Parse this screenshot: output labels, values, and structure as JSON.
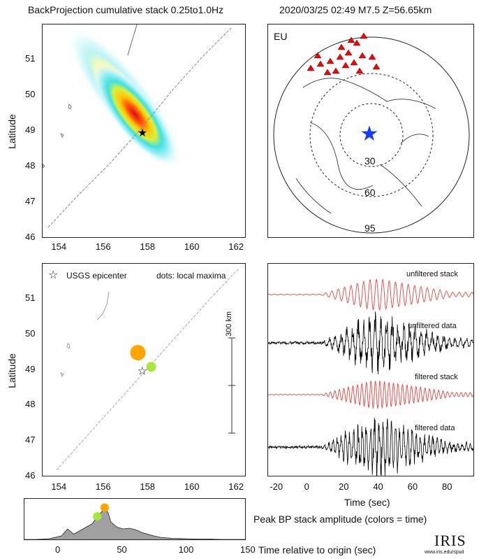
{
  "header": {
    "left_title": "BackProjection cumulative stack 0.25to1.0Hz",
    "right_title": "2020/03/25 02:49   M7.5   Z=56.65km"
  },
  "map_top": {
    "ylabel": "Latitude",
    "xticks": [
      "154",
      "156",
      "158",
      "160",
      "162"
    ],
    "yticks": [
      "51",
      "50",
      "49",
      "48",
      "47",
      "46"
    ],
    "epicenter": {
      "lon": 157.7,
      "lat": 49.0
    },
    "xlim": [
      153.2,
      162.4
    ],
    "ylim": [
      46.0,
      52.0
    ]
  },
  "globe": {
    "network_label": "EU",
    "distance_labels": [
      "30",
      "60",
      "95"
    ]
  },
  "map_bottom": {
    "ylabel": "Latitude",
    "legend_epicenter": "USGS epicenter",
    "legend_dots": "dots: local maxima",
    "scalebar_label": "300 km",
    "xticks": [
      "154",
      "156",
      "158",
      "160",
      "162"
    ],
    "yticks": [
      "51",
      "50",
      "49",
      "48",
      "47",
      "46"
    ],
    "xlim": [
      153.2,
      162.4
    ],
    "ylim": [
      46.0,
      52.0
    ],
    "epicenter": {
      "lon": 157.7,
      "lat": 49.0
    },
    "maxima": [
      {
        "lon": 157.5,
        "lat": 49.5,
        "color": "#ffa500",
        "size": "large"
      },
      {
        "lon": 158.1,
        "lat": 49.1,
        "color": "#a8e63c",
        "size": "small"
      }
    ]
  },
  "traces": {
    "labels": [
      "unfiltered stack",
      "unfiltered data",
      "filtered stack",
      "filtered data"
    ],
    "xlabel": "Time (sec)",
    "xticks": [
      "-20",
      "0",
      "20",
      "40",
      "60",
      "80"
    ],
    "xlim": [
      -25,
      95
    ]
  },
  "peak_panel": {
    "caption": "Peak BP stack amplitude (colors = time)",
    "xlabel": "Time relative to origin (sec)",
    "xticks": [
      "0",
      "50",
      "100",
      "150"
    ]
  },
  "logo": {
    "text": "IRIS",
    "url": "www.iris.edu/spud"
  },
  "colors": {
    "stack_trace": "#e8413a",
    "data_trace": "#000000",
    "epicenter_globe": "#1a3cff",
    "stations": "#ff0000"
  },
  "chart_data": {
    "type": "line",
    "title": "Peak BP stack amplitude (colors = time)",
    "xlabel": "Time relative to origin (sec)",
    "ylabel": "",
    "xlim": [
      -30,
      150
    ],
    "x": [
      -30,
      -20,
      -10,
      0,
      5,
      10,
      15,
      20,
      25,
      28,
      30,
      33,
      36,
      38,
      40,
      45,
      50,
      55,
      60,
      65,
      70,
      75,
      80,
      90,
      100,
      110,
      120,
      130,
      140,
      150
    ],
    "series": [
      {
        "values": [
          0.0,
          0.0,
          0.02,
          0.1,
          0.3,
          0.15,
          0.25,
          0.35,
          0.45,
          0.6,
          0.7,
          0.8,
          0.85,
          0.75,
          0.5,
          0.35,
          0.3,
          0.32,
          0.28,
          0.2,
          0.15,
          0.1,
          0.06,
          0.03,
          0.02,
          0.01,
          0.01,
          0.0,
          0.0,
          0.0
        ]
      }
    ],
    "markers": [
      {
        "x": 29,
        "color": "#a8e63c"
      },
      {
        "x": 35,
        "color": "#ffa500"
      }
    ]
  }
}
